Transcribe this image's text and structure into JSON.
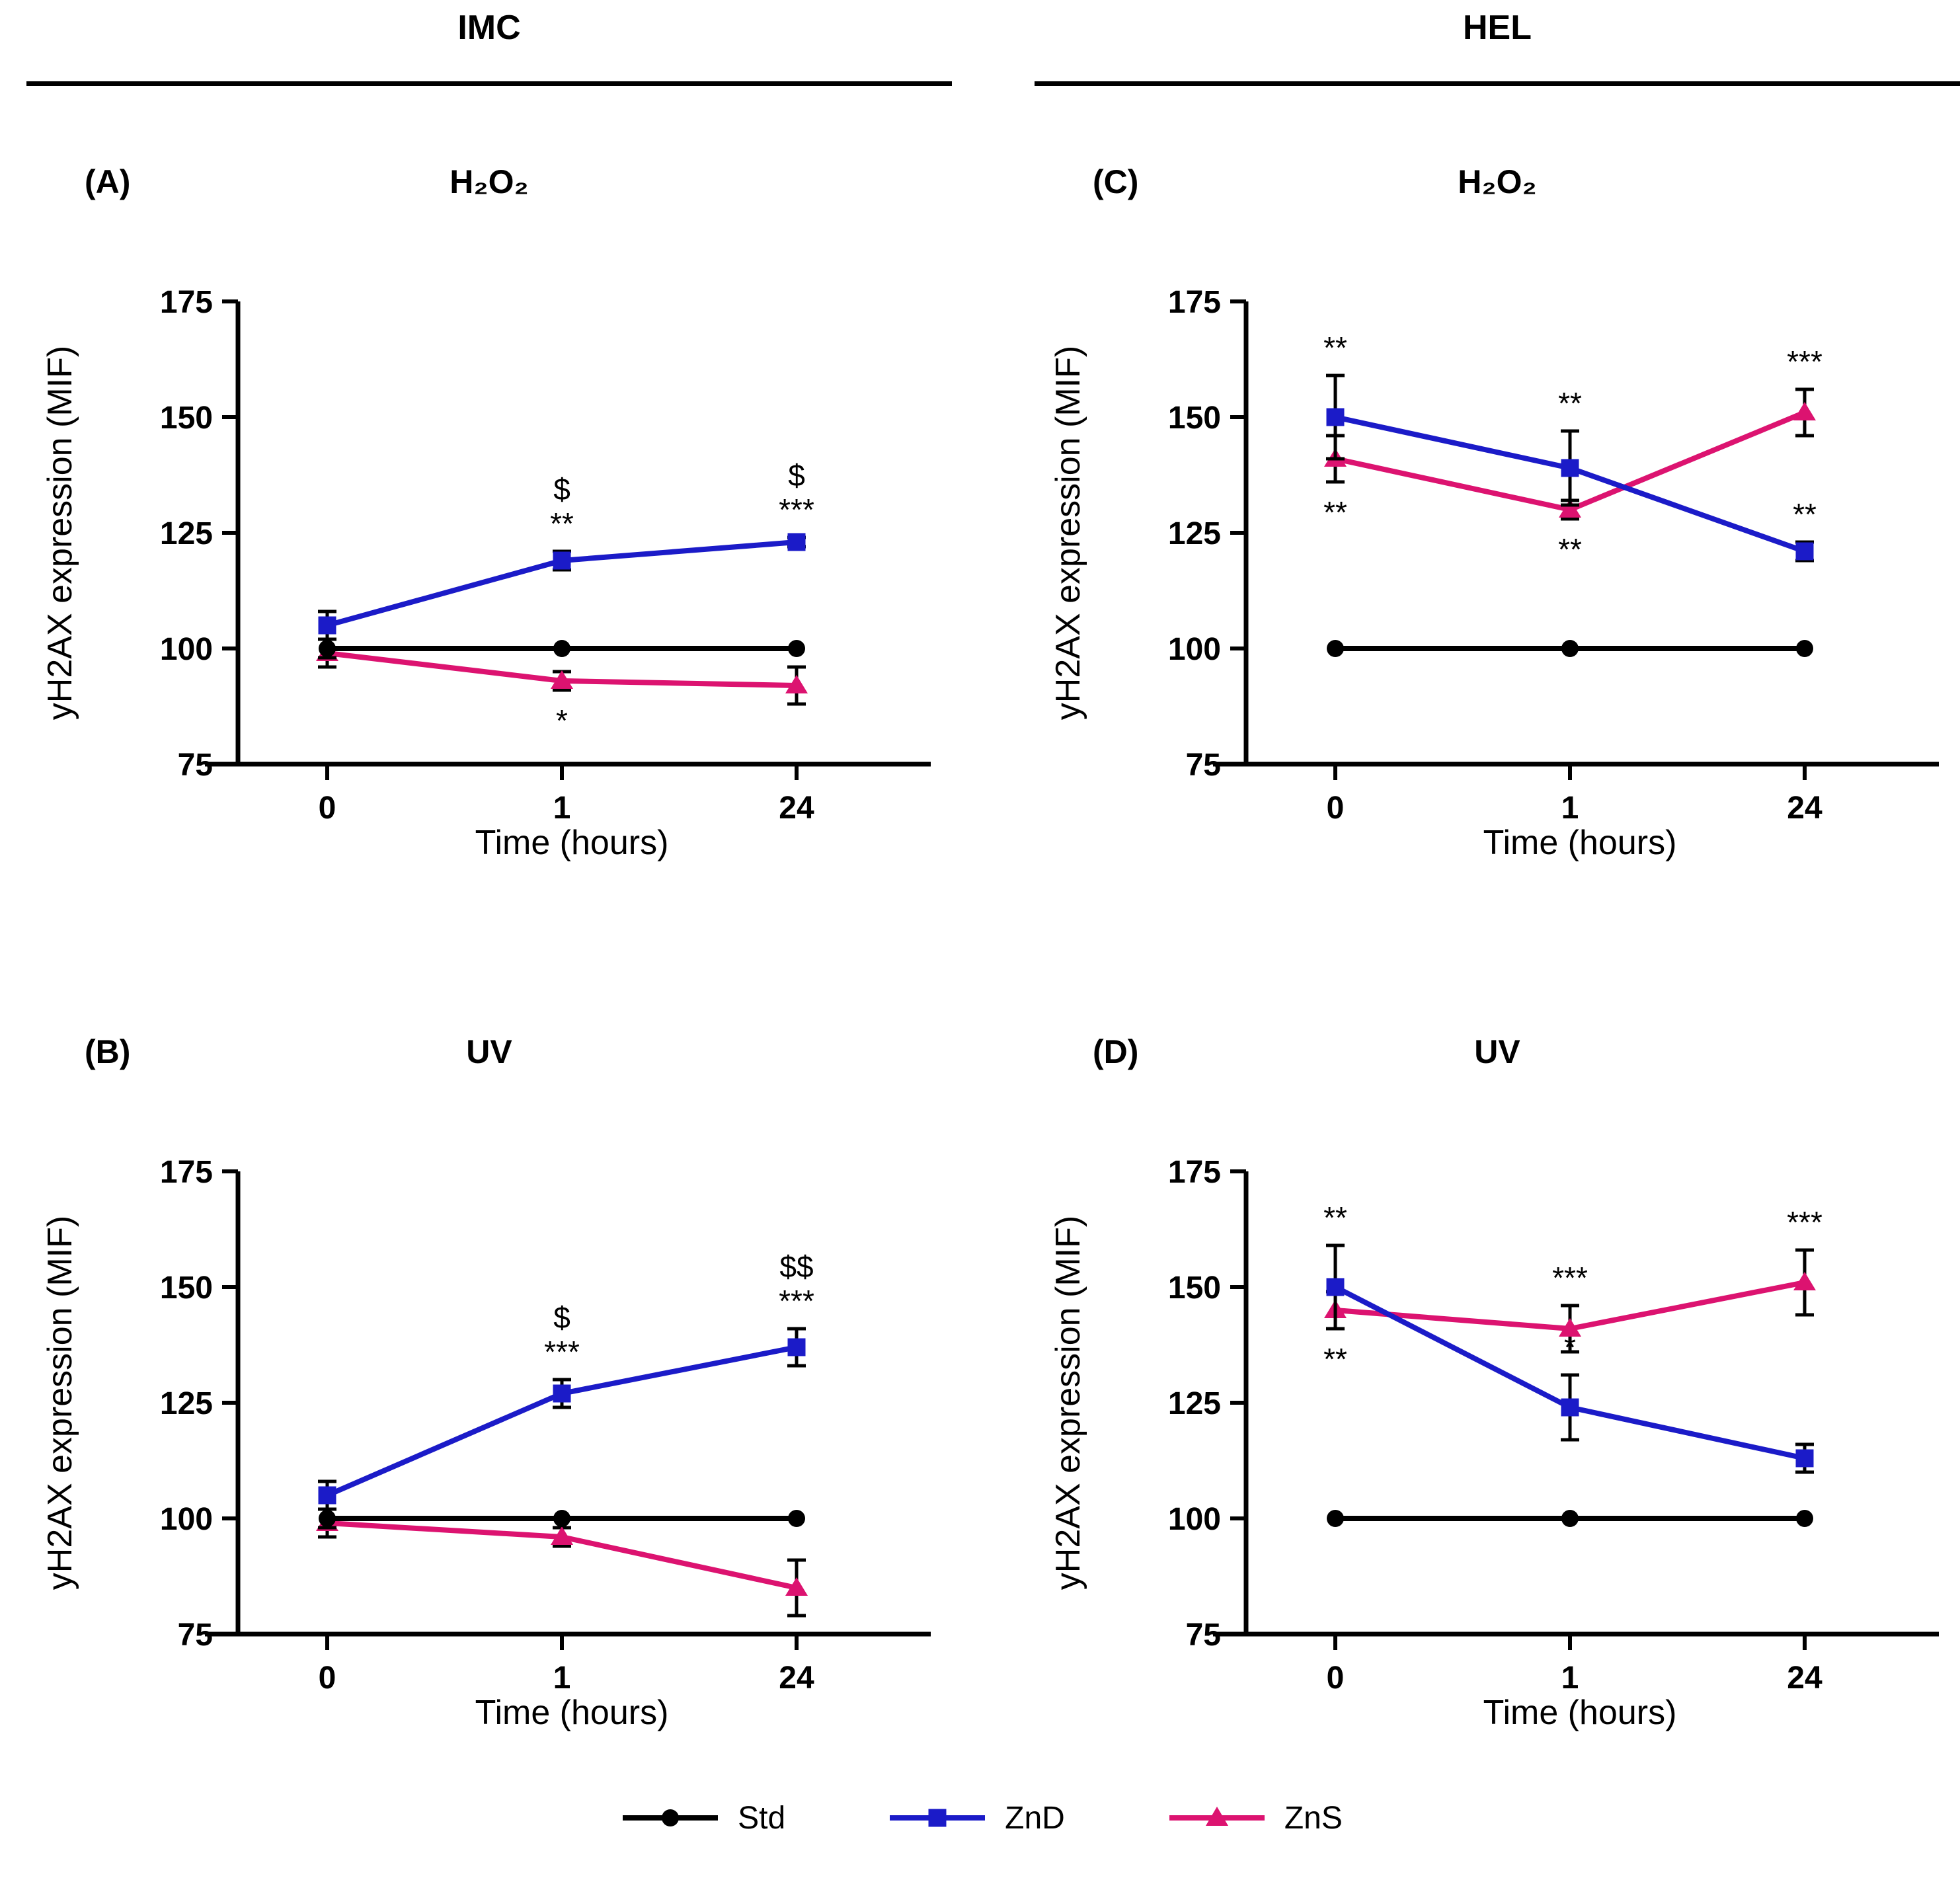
{
  "figure": {
    "columns": [
      {
        "title": "IMC"
      },
      {
        "title": "HEL"
      }
    ],
    "legend": [
      {
        "label": "Std",
        "marker": "circle",
        "color": "#000000"
      },
      {
        "label": "ZnD",
        "marker": "square",
        "color": "#1b1bc8"
      },
      {
        "label": "ZnS",
        "marker": "triangle",
        "color": "#dc1370"
      }
    ]
  },
  "chart_data": [
    {
      "type": "line",
      "panel_label": "(A)",
      "title": "H₂O₂",
      "column": "IMC",
      "xlabel": "Time (hours)",
      "ylabel": "yH2AX expression (MIF)",
      "x_categories": [
        "0",
        "1",
        "24"
      ],
      "ylim": [
        75,
        175
      ],
      "yticks": [
        75,
        100,
        125,
        150,
        175
      ],
      "grid": false,
      "legend_position": "bottom",
      "series": [
        {
          "name": "Std",
          "marker": "circle",
          "color": "#000000",
          "values": [
            100,
            100,
            100
          ],
          "errors": [
            2,
            0,
            0
          ]
        },
        {
          "name": "ZnD",
          "marker": "square",
          "color": "#1b1bc8",
          "values": [
            105,
            119,
            123
          ],
          "errors": [
            3,
            2,
            1
          ]
        },
        {
          "name": "ZnS",
          "marker": "triangle",
          "color": "#dc1370",
          "values": [
            99,
            93,
            92
          ],
          "errors": [
            3,
            2,
            4
          ]
        }
      ],
      "annotations": [
        {
          "series": "ZnD",
          "point": 1,
          "lines": [
            "$",
            "**"
          ],
          "placement": "above"
        },
        {
          "series": "ZnD",
          "point": 2,
          "lines": [
            "$",
            "***"
          ],
          "placement": "above"
        },
        {
          "series": "ZnS",
          "point": 1,
          "lines": [
            "*"
          ],
          "placement": "below"
        }
      ]
    },
    {
      "type": "line",
      "panel_label": "(C)",
      "title": "H₂O₂",
      "column": "HEL",
      "xlabel": "Time (hours)",
      "ylabel": "yH2AX expression (MIF)",
      "x_categories": [
        "0",
        "1",
        "24"
      ],
      "ylim": [
        75,
        175
      ],
      "yticks": [
        75,
        100,
        125,
        150,
        175
      ],
      "grid": false,
      "legend_position": "bottom",
      "series": [
        {
          "name": "Std",
          "marker": "circle",
          "color": "#000000",
          "values": [
            100,
            100,
            100
          ],
          "errors": [
            0,
            0,
            0
          ]
        },
        {
          "name": "ZnD",
          "marker": "square",
          "color": "#1b1bc8",
          "values": [
            150,
            139,
            121
          ],
          "errors": [
            9,
            8,
            2
          ]
        },
        {
          "name": "ZnS",
          "marker": "triangle",
          "color": "#dc1370",
          "values": [
            141,
            130,
            151
          ],
          "errors": [
            5,
            2,
            5
          ]
        }
      ],
      "annotations": [
        {
          "series": "ZnD",
          "point": 0,
          "lines": [
            "**"
          ],
          "placement": "above"
        },
        {
          "series": "ZnS",
          "point": 0,
          "lines": [
            "**"
          ],
          "placement": "below"
        },
        {
          "series": "ZnD",
          "point": 1,
          "lines": [
            "**"
          ],
          "placement": "above"
        },
        {
          "series": "ZnS",
          "point": 1,
          "lines": [
            "**"
          ],
          "placement": "below"
        },
        {
          "series": "ZnD",
          "point": 2,
          "lines": [
            "**"
          ],
          "placement": "above"
        },
        {
          "series": "ZnS",
          "point": 2,
          "lines": [
            "***"
          ],
          "placement": "above"
        }
      ]
    },
    {
      "type": "line",
      "panel_label": "(B)",
      "title": "UV",
      "column": "IMC",
      "xlabel": "Time (hours)",
      "ylabel": "yH2AX expression (MIF)",
      "x_categories": [
        "0",
        "1",
        "24"
      ],
      "ylim": [
        75,
        175
      ],
      "yticks": [
        75,
        100,
        125,
        150,
        175
      ],
      "grid": false,
      "legend_position": "bottom",
      "series": [
        {
          "name": "Std",
          "marker": "circle",
          "color": "#000000",
          "values": [
            100,
            100,
            100
          ],
          "errors": [
            2,
            0,
            0
          ]
        },
        {
          "name": "ZnD",
          "marker": "square",
          "color": "#1b1bc8",
          "values": [
            105,
            127,
            137
          ],
          "errors": [
            3,
            3,
            4
          ]
        },
        {
          "name": "ZnS",
          "marker": "triangle",
          "color": "#dc1370",
          "values": [
            99,
            96,
            85
          ],
          "errors": [
            3,
            2,
            6
          ]
        }
      ],
      "annotations": [
        {
          "series": "ZnD",
          "point": 1,
          "lines": [
            "$",
            "***"
          ],
          "placement": "above"
        },
        {
          "series": "ZnD",
          "point": 2,
          "lines": [
            "$$",
            "***"
          ],
          "placement": "above"
        }
      ]
    },
    {
      "type": "line",
      "panel_label": "(D)",
      "title": "UV",
      "column": "HEL",
      "xlabel": "Time (hours)",
      "ylabel": "yH2AX expression (MIF)",
      "x_categories": [
        "0",
        "1",
        "24"
      ],
      "ylim": [
        75,
        175
      ],
      "yticks": [
        75,
        100,
        125,
        150,
        175
      ],
      "grid": false,
      "legend_position": "bottom",
      "series": [
        {
          "name": "Std",
          "marker": "circle",
          "color": "#000000",
          "values": [
            100,
            100,
            100
          ],
          "errors": [
            0,
            0,
            0
          ]
        },
        {
          "name": "ZnD",
          "marker": "square",
          "color": "#1b1bc8",
          "values": [
            150,
            124,
            113
          ],
          "errors": [
            9,
            7,
            3
          ]
        },
        {
          "name": "ZnS",
          "marker": "triangle",
          "color": "#dc1370",
          "values": [
            145,
            141,
            151
          ],
          "errors": [
            4,
            5,
            7
          ]
        }
      ],
      "annotations": [
        {
          "series": "ZnD",
          "point": 0,
          "lines": [
            "**"
          ],
          "placement": "above"
        },
        {
          "series": "ZnS",
          "point": 0,
          "lines": [
            "**"
          ],
          "placement": "below"
        },
        {
          "series": "ZnD",
          "point": 1,
          "lines": [
            "*"
          ],
          "placement": "above"
        },
        {
          "series": "ZnS",
          "point": 1,
          "lines": [
            "***"
          ],
          "placement": "above"
        },
        {
          "series": "ZnS",
          "point": 2,
          "lines": [
            "***"
          ],
          "placement": "above"
        }
      ]
    }
  ]
}
